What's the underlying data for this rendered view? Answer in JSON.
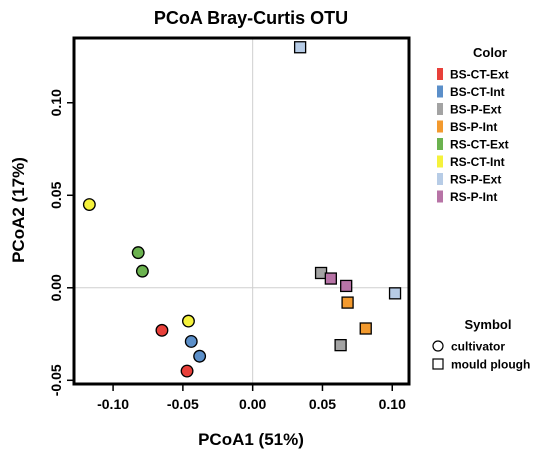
{
  "chart_data": {
    "type": "scatter",
    "title": "PCoA Bray-Curtis OTU",
    "xlabel": "PCoA1 (51%)",
    "ylabel": "PCoA2 (17%)",
    "xlim": [
      -0.128,
      0.112
    ],
    "ylim": [
      -0.052,
      0.135
    ],
    "xticks": [
      -0.1,
      -0.05,
      0.0,
      0.05,
      0.1
    ],
    "xtick_labels": [
      "-0.10",
      "-0.05",
      "0.00",
      "0.05",
      "0.10"
    ],
    "yticks": [
      -0.05,
      0.0,
      0.05,
      0.1
    ],
    "ytick_labels": [
      "-0.05",
      "0.00",
      "0.05",
      "0.10"
    ],
    "reference_lines": {
      "x": 0,
      "y": 0,
      "color": "#cfcfcf"
    },
    "grid": false,
    "legend_color": {
      "title": "Color",
      "position": "right-top",
      "items": [
        {
          "label": "BS-CT-Ext",
          "color": "#e8403a"
        },
        {
          "label": "BS-CT-Int",
          "color": "#5b8fc9"
        },
        {
          "label": "BS-P-Ext",
          "color": "#a3a3a3"
        },
        {
          "label": "BS-P-Int",
          "color": "#f39a2e"
        },
        {
          "label": "RS-CT-Ext",
          "color": "#6bb24f"
        },
        {
          "label": "RS-CT-Int",
          "color": "#f5f23c"
        },
        {
          "label": "RS-P-Ext",
          "color": "#b7cce6"
        },
        {
          "label": "RS-P-Int",
          "color": "#b773a6"
        }
      ]
    },
    "legend_symbol": {
      "title": "Symbol",
      "position": "right-bottom",
      "items": [
        {
          "label": "cultivator",
          "shape": "circle"
        },
        {
          "label": "mould plough",
          "shape": "square"
        }
      ]
    },
    "series": [
      {
        "name": "BS-CT-Ext",
        "shape": "circle",
        "color": "#e8403a",
        "points": [
          [
            -0.065,
            -0.023
          ],
          [
            -0.047,
            -0.045
          ]
        ]
      },
      {
        "name": "BS-CT-Int",
        "shape": "circle",
        "color": "#5b8fc9",
        "points": [
          [
            -0.044,
            -0.029
          ],
          [
            -0.038,
            -0.037
          ]
        ]
      },
      {
        "name": "RS-CT-Ext",
        "shape": "circle",
        "color": "#6bb24f",
        "points": [
          [
            -0.082,
            0.019
          ],
          [
            -0.079,
            0.009
          ]
        ]
      },
      {
        "name": "RS-CT-Int",
        "shape": "circle",
        "color": "#f5f23c",
        "points": [
          [
            -0.117,
            0.045
          ],
          [
            -0.046,
            -0.018
          ]
        ]
      },
      {
        "name": "BS-P-Ext",
        "shape": "square",
        "color": "#a3a3a3",
        "points": [
          [
            0.049,
            0.008
          ],
          [
            0.063,
            -0.031
          ]
        ]
      },
      {
        "name": "BS-P-Int",
        "shape": "square",
        "color": "#f39a2e",
        "points": [
          [
            0.068,
            -0.008
          ],
          [
            0.081,
            -0.022
          ]
        ]
      },
      {
        "name": "RS-P-Ext",
        "shape": "square",
        "color": "#b7cce6",
        "points": [
          [
            0.034,
            0.13
          ],
          [
            0.102,
            -0.003
          ]
        ]
      },
      {
        "name": "RS-P-Int",
        "shape": "square",
        "color": "#b773a6",
        "points": [
          [
            0.056,
            0.005
          ],
          [
            0.067,
            0.001
          ]
        ]
      }
    ]
  }
}
